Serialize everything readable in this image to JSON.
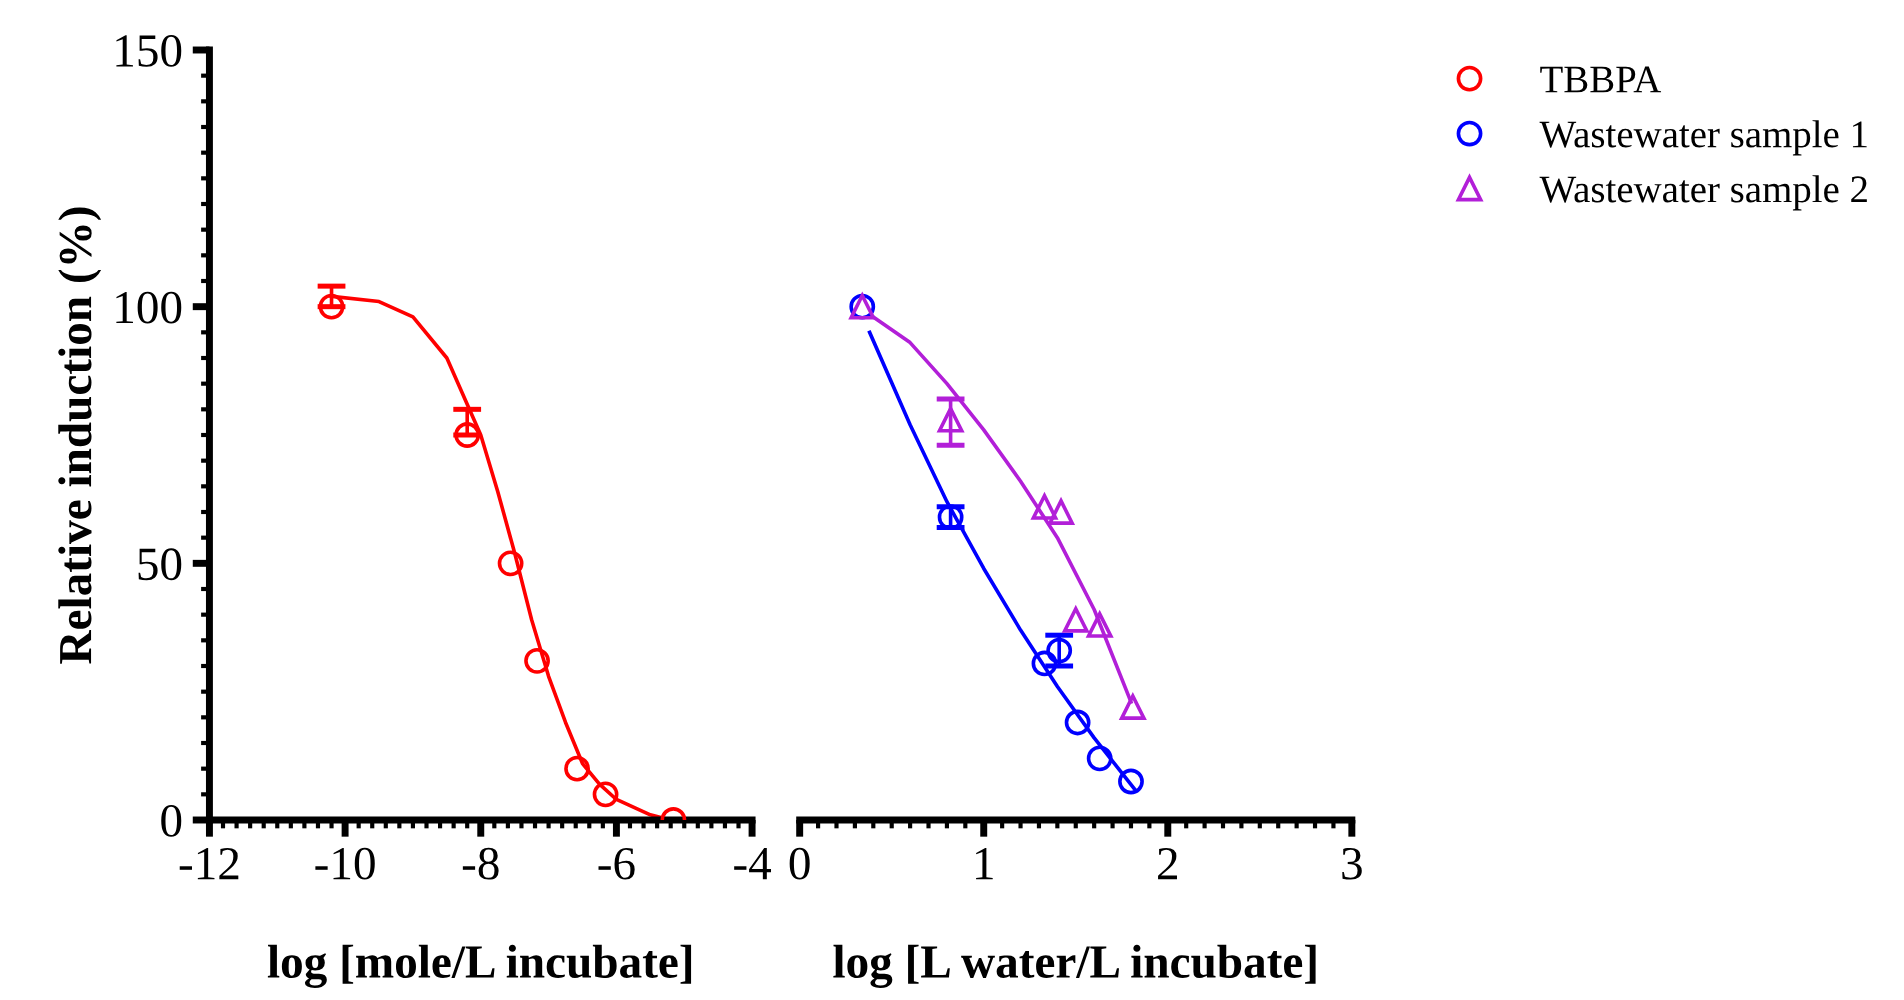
{
  "chart_data": [
    {
      "type": "scatter",
      "xlabel": "log [mole/L incubate]",
      "ylabel": "Relative induction (%)",
      "xlim": [
        -12,
        -4
      ],
      "xticks": [
        -12,
        -10,
        -8,
        -6,
        -4
      ],
      "ylim": [
        0,
        150
      ],
      "yticks": [
        0,
        50,
        100,
        150
      ],
      "grid": false,
      "legend": "top right",
      "series": [
        {
          "name": "TBBPA",
          "marker": "circle",
          "color": "#ff0000",
          "x": [
            -10.2,
            -8.2,
            -7.56,
            -7.17,
            -6.58,
            -6.16,
            -5.16
          ],
          "values": [
            100,
            75,
            50,
            31,
            10,
            5,
            0
          ],
          "errors": [
            [
              100,
              104
            ],
            [
              75,
              80
            ],
            null,
            null,
            null,
            null,
            null
          ]
        },
        {
          "type": "line",
          "color": "#ff0000",
          "x": [
            -10.2,
            -9.5,
            -9,
            -8.5,
            -8.2,
            -8,
            -7.75,
            -7.5,
            -7.25,
            -7,
            -6.75,
            -6.5,
            -6.25,
            -6,
            -5.5,
            -5.2
          ],
          "values": [
            102,
            101,
            98,
            90,
            81,
            75,
            64,
            52,
            39,
            28,
            19,
            11,
            7,
            4,
            1,
            0
          ]
        }
      ]
    },
    {
      "type": "scatter",
      "xlabel": "log [L water/L incubate]",
      "xlim": [
        0,
        3
      ],
      "xticks": [
        0,
        1,
        2,
        3
      ],
      "ylim": [
        0,
        150
      ],
      "tick_labels": "x",
      "grid": false,
      "legend": "top right",
      "series": [
        {
          "name": "Wastewater sample 1",
          "marker": "circle",
          "color": "#0000ff",
          "x": [
            0.34,
            0.82,
            1.33,
            1.41,
            1.51,
            1.63,
            1.8
          ],
          "values": [
            100,
            59,
            30.5,
            33,
            19,
            12,
            7.5
          ],
          "errors": [
            null,
            [
              57,
              61
            ],
            null,
            [
              30,
              36
            ],
            null,
            null,
            null
          ]
        },
        {
          "name": "Wastewater sample 2",
          "marker": "triangle",
          "color": "#b21fd8",
          "x": [
            0.34,
            0.82,
            1.33,
            1.42,
            1.5,
            1.63,
            1.81
          ],
          "values": [
            100,
            78,
            61,
            60,
            39,
            38,
            22
          ],
          "errors": [
            null,
            [
              73,
              82
            ],
            null,
            null,
            null,
            null,
            null
          ]
        },
        {
          "type": "line",
          "color": "#0000ff",
          "x": [
            0.38,
            0.6,
            0.8,
            1.0,
            1.2,
            1.4,
            1.6,
            1.82
          ],
          "values": [
            95,
            77,
            62,
            49,
            37,
            26,
            16,
            6
          ]
        },
        {
          "type": "line",
          "color": "#b21fd8",
          "x": [
            0.4,
            0.6,
            0.8,
            1.0,
            1.2,
            1.4,
            1.6,
            1.8
          ],
          "values": [
            98,
            93,
            85,
            76,
            66,
            55,
            41,
            23
          ]
        }
      ]
    }
  ]
}
